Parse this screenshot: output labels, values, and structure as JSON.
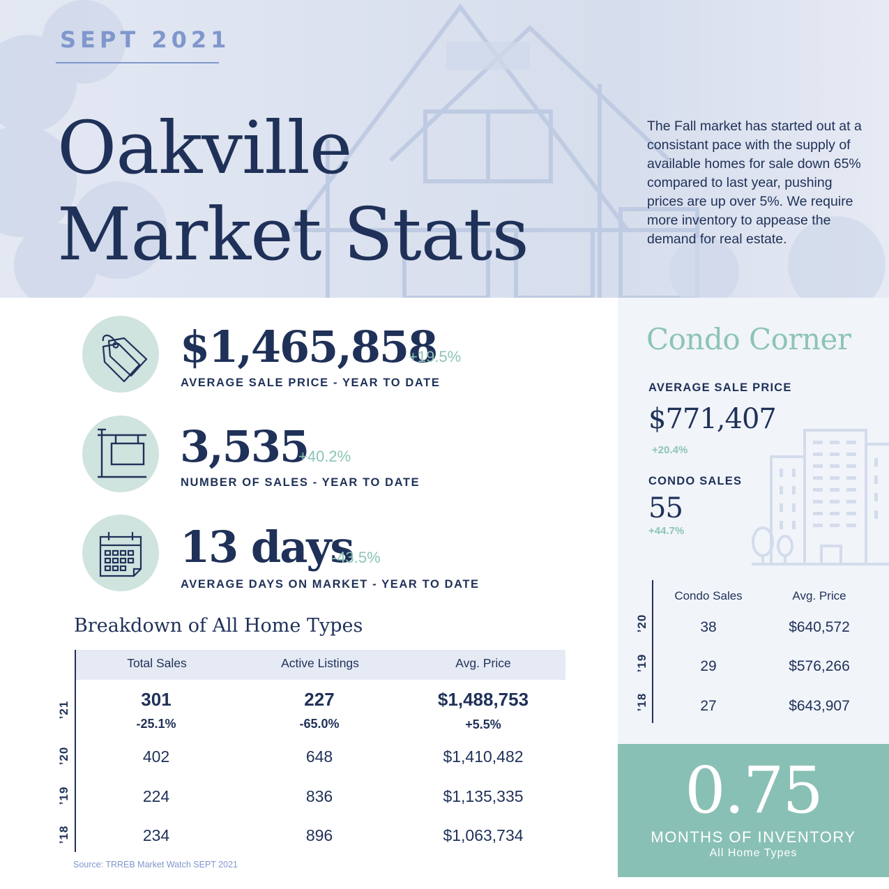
{
  "header": {
    "issue": "SEPT 2021",
    "title_line1": "Oakville",
    "title_line2": "Market Stats",
    "intro": "The Fall market has started out at a consistant pace with the supply of available homes for sale down 65% compared to last year, pushing prices are up over 5%.  We require more inventory to appease the demand for real estate."
  },
  "stats": [
    {
      "icon": "price-tag-icon",
      "value": "$1,465,858",
      "change": "+19.5%",
      "label": "AVERAGE SALE PRICE - YEAR TO DATE"
    },
    {
      "icon": "for-sale-sign-icon",
      "value": "3,535",
      "change": "+40.2%",
      "label": "NUMBER OF SALES - YEAR TO DATE"
    },
    {
      "icon": "calendar-icon",
      "value": "13 days",
      "change": "-43.5%",
      "label": "AVERAGE DAYS ON MARKET - YEAR TO DATE"
    }
  ],
  "breakdown": {
    "title": "Breakdown of All Home Types",
    "columns": [
      "Total Sales",
      "Active Listings",
      "Avg. Price"
    ],
    "current": {
      "year": "’21",
      "total_sales": "301",
      "total_sales_change": "-25.1%",
      "active_listings": "227",
      "active_listings_change": "-65.0%",
      "avg_price": "$1,488,753",
      "avg_price_change": "+5.5%"
    },
    "rows": [
      {
        "year": "’20",
        "total_sales": "402",
        "active_listings": "648",
        "avg_price": "$1,410,482"
      },
      {
        "year": "’19",
        "total_sales": "224",
        "active_listings": "836",
        "avg_price": "$1,135,335"
      },
      {
        "year": "’18",
        "total_sales": "234",
        "active_listings": "896",
        "avg_price": "$1,063,734"
      }
    ],
    "source": "Source: TRREB Market Watch SEPT 2021"
  },
  "condo": {
    "title": "Condo Corner",
    "avg_price_label": "AVERAGE SALE PRICE",
    "avg_price_value": "$771,407",
    "avg_price_change": "+20.4%",
    "sales_label": "CONDO SALES",
    "sales_value": "55",
    "sales_change": "+44.7%",
    "columns": [
      "Condo Sales",
      "Avg. Price"
    ],
    "rows": [
      {
        "year": "’20",
        "sales": "38",
        "avg_price": "$640,572"
      },
      {
        "year": "’19",
        "sales": "29",
        "avg_price": "$576,266"
      },
      {
        "year": "’18",
        "sales": "27",
        "avg_price": "$643,907"
      }
    ]
  },
  "inventory": {
    "value": "0.75",
    "label": "MONTHS OF INVENTORY",
    "sublabel": "All Home Types"
  },
  "colors": {
    "navy": "#1f3158",
    "accent_blue": "#7f97cc",
    "mint": "#8cc4b7",
    "mint_light": "#cfe3df",
    "hero_bg": "#dfe5f1"
  }
}
